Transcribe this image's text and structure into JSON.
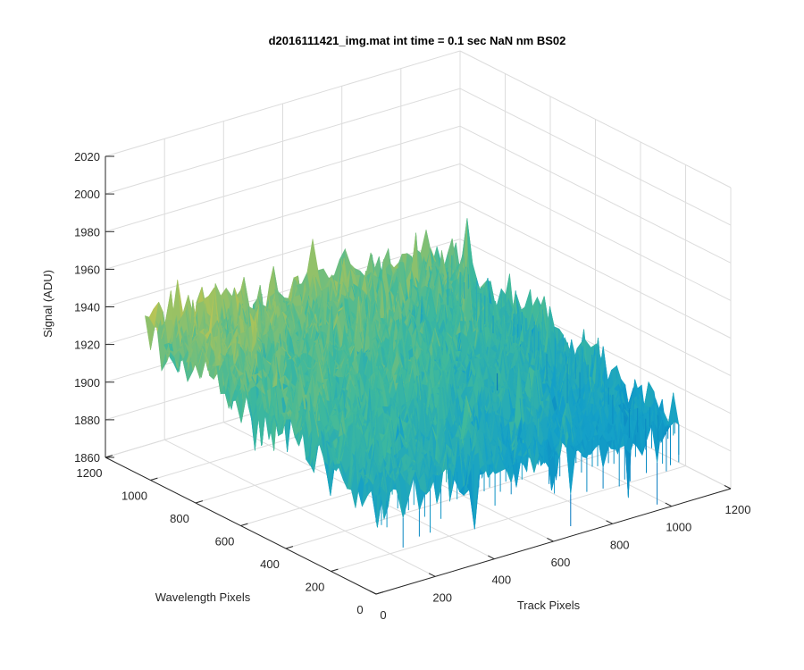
{
  "chart_data": {
    "type": "surface",
    "title": "d2016111421_img.mat int time = 0.1 sec  NaN nm BS02",
    "xlabel": "Track Pixels",
    "ylabel": "Wavelength Pixels",
    "zlabel": "Signal (ADU)",
    "xlim": [
      0,
      1200
    ],
    "ylim": [
      0,
      1200
    ],
    "zlim": [
      1860,
      2020
    ],
    "xticks": [
      "0",
      "200",
      "400",
      "600",
      "800",
      "1000",
      "1200"
    ],
    "yticks": [
      "0",
      "200",
      "400",
      "600",
      "800",
      "1000",
      "1200"
    ],
    "zticks": [
      "1860",
      "1880",
      "1900",
      "1920",
      "1940",
      "1960",
      "1980",
      "2000",
      "2020"
    ],
    "grid": true,
    "colormap": "parula",
    "surface": {
      "x_extent": [
        0,
        1024
      ],
      "y_extent": [
        0,
        1024
      ],
      "mean_signal": 1925,
      "noise_spread": 15,
      "corner_values": {
        "x0_y0": 1915,
        "x1024_y0": 1900,
        "x0_y1024": 1940,
        "x1024_y1024": 1930
      }
    },
    "colors": {
      "low": "#0072bd",
      "mid": "#3fb99c",
      "high": "#e5c84a"
    }
  }
}
